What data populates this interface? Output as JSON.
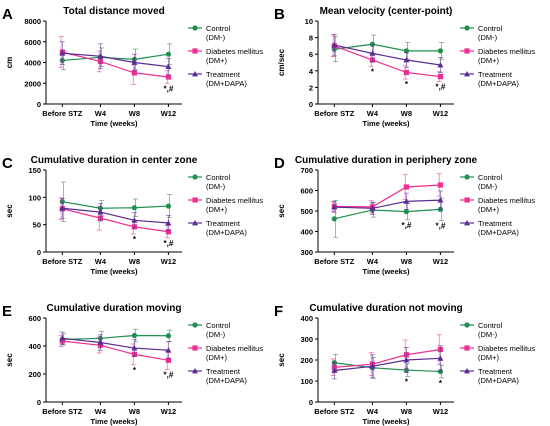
{
  "colors": {
    "control": "#1f8f4e",
    "dm": "#ee2f8f",
    "treatment": "#5b2d91",
    "axis": "#000000"
  },
  "legend": [
    {
      "key": "control",
      "line1": "Control",
      "line2": "(DM-)"
    },
    {
      "key": "dm",
      "line1": "Diabetes mellitus",
      "line2": "(DM+)"
    },
    {
      "key": "treatment",
      "line1": "Treatment",
      "line2": "(DM+DAPA)"
    }
  ],
  "chart_data": [
    {
      "type": "line",
      "letter": "A",
      "title": "Total distance moved",
      "xlabel": "Time (weeks)",
      "ylabel": "cm",
      "categories": [
        "Before STZ",
        "W4",
        "W8",
        "W12"
      ],
      "ylim": [
        0,
        8000
      ],
      "yticks": [
        0,
        2000,
        4000,
        6000,
        8000
      ],
      "series": [
        {
          "key": "control",
          "name": "Control (DM-)",
          "values": [
            4200,
            4500,
            4300,
            4800
          ],
          "errors": [
            900,
            900,
            1000,
            1000
          ]
        },
        {
          "key": "dm",
          "name": "Diabetes mellitus (DM+)",
          "values": [
            5000,
            4100,
            3000,
            2600
          ],
          "errors": [
            1500,
            1000,
            1100,
            600
          ]
        },
        {
          "key": "treatment",
          "name": "Treatment (DM+DAPA)",
          "values": [
            4900,
            4600,
            4000,
            3600
          ],
          "errors": [
            1100,
            1200,
            800,
            800
          ]
        }
      ],
      "annotations": [
        {
          "index": 3,
          "text": "*,#"
        }
      ]
    },
    {
      "type": "line",
      "letter": "B",
      "title": "Mean velocity (center-point)",
      "xlabel": "Time (weeks)",
      "ylabel": "cm/sec",
      "categories": [
        "Before STZ",
        "W4",
        "W8",
        "W12"
      ],
      "ylim": [
        0,
        10
      ],
      "yticks": [
        0,
        2,
        4,
        6,
        8,
        10
      ],
      "series": [
        {
          "key": "control",
          "name": "Control (DM-)",
          "values": [
            6.6,
            7.2,
            6.4,
            6.4
          ],
          "errors": [
            1.5,
            1.1,
            1.0,
            1.0
          ]
        },
        {
          "key": "dm",
          "name": "Diabetes mellitus (DM+)",
          "values": [
            7.0,
            5.3,
            3.8,
            3.3
          ],
          "errors": [
            1.3,
            0.8,
            0.8,
            0.6
          ]
        },
        {
          "key": "treatment",
          "name": "Treatment (DM+DAPA)",
          "values": [
            7.1,
            6.1,
            5.3,
            4.7
          ],
          "errors": [
            1.3,
            1.0,
            0.9,
            0.9
          ]
        }
      ],
      "annotations": [
        {
          "index": 1,
          "text": "*"
        },
        {
          "index": 2,
          "text": "*"
        },
        {
          "index": 3,
          "text": "*,#"
        }
      ]
    },
    {
      "type": "line",
      "letter": "C",
      "title": "Cumulative duration in center zone",
      "xlabel": "Time (weeks)",
      "ylabel": "sec",
      "categories": [
        "Before STZ",
        "W4",
        "W8",
        "W12"
      ],
      "ylim": [
        0,
        150
      ],
      "yticks": [
        0,
        50,
        100,
        150
      ],
      "series": [
        {
          "key": "control",
          "name": "Control (DM-)",
          "values": [
            92,
            80,
            81,
            84
          ],
          "errors": [
            36,
            14,
            16,
            21
          ]
        },
        {
          "key": "dm",
          "name": "Diabetes mellitus (DM+)",
          "values": [
            79,
            62,
            46,
            37
          ],
          "errors": [
            20,
            22,
            13,
            11
          ]
        },
        {
          "key": "treatment",
          "name": "Treatment (DM+DAPA)",
          "values": [
            80,
            73,
            58,
            53
          ],
          "errors": [
            18,
            16,
            14,
            14
          ]
        }
      ],
      "annotations": [
        {
          "index": 2,
          "text": "*"
        },
        {
          "index": 3,
          "text": "*,#"
        }
      ]
    },
    {
      "type": "line",
      "letter": "D",
      "title": "Cumulative duration in periphery zone",
      "xlabel": "Time (weeks)",
      "ylabel": "sec",
      "categories": [
        "Before STZ",
        "W4",
        "W8",
        "W12"
      ],
      "ylim": [
        300,
        700
      ],
      "yticks": [
        300,
        400,
        500,
        600,
        700
      ],
      "series": [
        {
          "key": "control",
          "name": "Control (DM-)",
          "values": [
            462,
            505,
            497,
            508
          ],
          "errors": [
            90,
            35,
            40,
            55
          ]
        },
        {
          "key": "dm",
          "name": "Diabetes mellitus (DM+)",
          "values": [
            522,
            520,
            617,
            627
          ],
          "errors": [
            25,
            30,
            60,
            55
          ]
        },
        {
          "key": "treatment",
          "name": "Treatment (DM+DAPA)",
          "values": [
            519,
            513,
            547,
            553
          ],
          "errors": [
            25,
            30,
            40,
            45
          ]
        }
      ],
      "annotations": [
        {
          "index": 2,
          "text": "*,#"
        },
        {
          "index": 3,
          "text": "*,#"
        }
      ]
    },
    {
      "type": "line",
      "letter": "E",
      "title": "Cumulative duration moving",
      "xlabel": "Time (weeks)",
      "ylabel": "sec",
      "categories": [
        "Before STZ",
        "W4",
        "W8",
        "W12"
      ],
      "ylim": [
        0,
        600
      ],
      "yticks": [
        0,
        200,
        400,
        600
      ],
      "series": [
        {
          "key": "control",
          "name": "Control (DM-)",
          "values": [
            447,
            455,
            475,
            473
          ],
          "errors": [
            40,
            50,
            45,
            40
          ]
        },
        {
          "key": "dm",
          "name": "Diabetes mellitus (DM+)",
          "values": [
            435,
            405,
            340,
            298
          ],
          "errors": [
            40,
            55,
            75,
            65
          ]
        },
        {
          "key": "treatment",
          "name": "Treatment (DM+DAPA)",
          "values": [
            455,
            425,
            385,
            370
          ],
          "errors": [
            45,
            55,
            60,
            60
          ]
        }
      ],
      "annotations": [
        {
          "index": 2,
          "text": "*"
        },
        {
          "index": 3,
          "text": "*,#"
        }
      ]
    },
    {
      "type": "line",
      "letter": "F",
      "title": "Cumulative duration not moving",
      "xlabel": "Time (weeks)",
      "ylabel": "sec",
      "categories": [
        "Before STZ",
        "W4",
        "W8",
        "W12"
      ],
      "ylim": [
        0,
        400
      ],
      "yticks": [
        0,
        100,
        200,
        300,
        400
      ],
      "series": [
        {
          "key": "control",
          "name": "Control (DM-)",
          "values": [
            187,
            163,
            152,
            145
          ],
          "errors": [
            40,
            50,
            30,
            30
          ]
        },
        {
          "key": "dm",
          "name": "Diabetes mellitus (DM+)",
          "values": [
            165,
            180,
            225,
            250
          ],
          "errors": [
            40,
            55,
            70,
            70
          ]
        },
        {
          "key": "treatment",
          "name": "Treatment (DM+DAPA)",
          "values": [
            150,
            170,
            200,
            208
          ],
          "errors": [
            40,
            55,
            60,
            60
          ]
        }
      ],
      "annotations": [
        {
          "index": 2,
          "text": "*"
        },
        {
          "index": 3,
          "text": "*"
        }
      ]
    }
  ]
}
